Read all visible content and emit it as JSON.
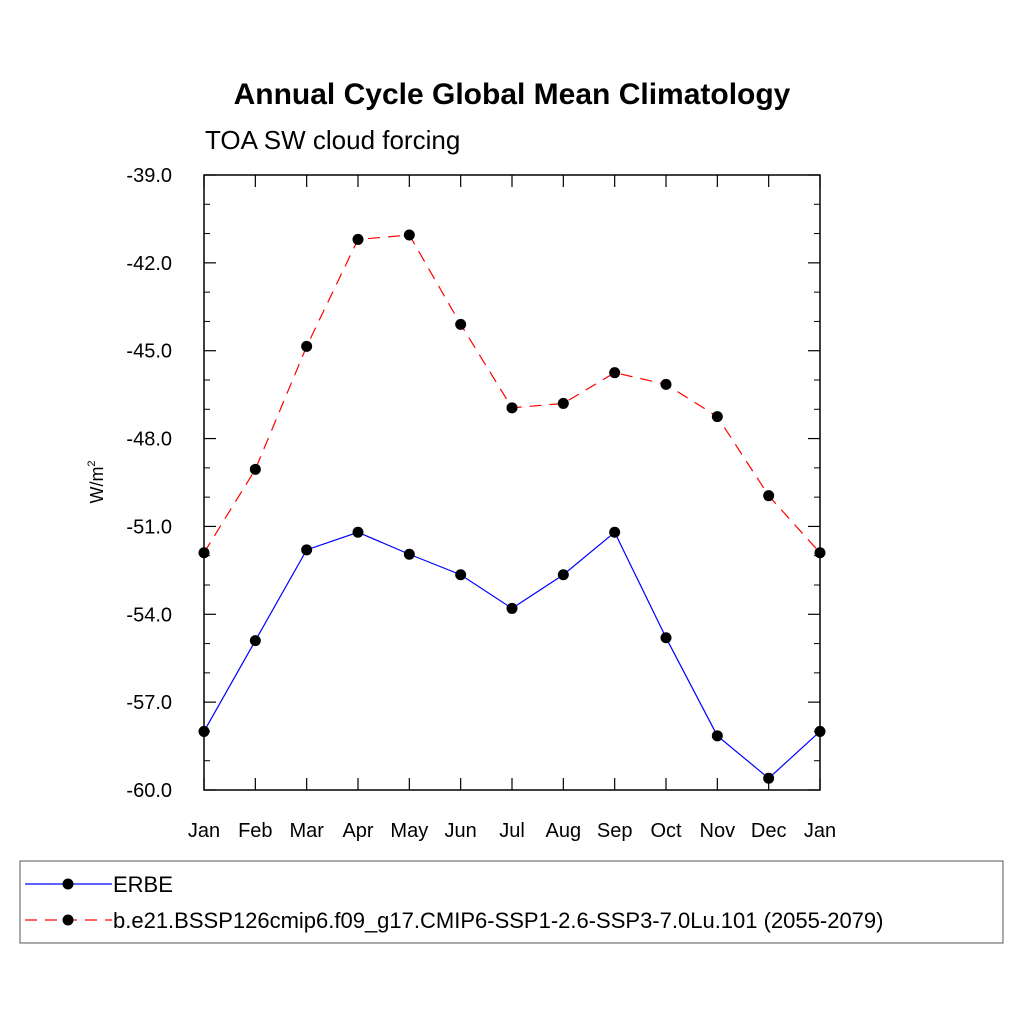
{
  "chart_data": {
    "type": "line",
    "title": "Annual Cycle Global Mean Climatology",
    "subtitle": "TOA SW cloud forcing",
    "ylabel": "W/m",
    "ylabel_sup": "2",
    "xlabel": "",
    "categories": [
      "Jan",
      "Feb",
      "Mar",
      "Apr",
      "May",
      "Jun",
      "Jul",
      "Aug",
      "Sep",
      "Oct",
      "Nov",
      "Dec",
      "Jan"
    ],
    "ylim": [
      -60.0,
      -39.0
    ],
    "yticks": [
      -60.0,
      -57.0,
      -54.0,
      -51.0,
      -48.0,
      -45.0,
      -42.0,
      -39.0
    ],
    "ytick_labels": [
      "-60.0",
      "-57.0",
      "-54.0",
      "-51.0",
      "-48.0",
      "-45.0",
      "-42.0",
      "-39.0"
    ],
    "grid": false,
    "legend_position": "bottom",
    "series": [
      {
        "name": "ERBE",
        "color": "#0000ff",
        "style": "solid",
        "marker": "filled-circle",
        "values": [
          -58.0,
          -54.9,
          -51.8,
          -51.2,
          -51.95,
          -52.65,
          -53.8,
          -52.65,
          -51.2,
          -54.8,
          -58.15,
          -59.6,
          -58.0
        ]
      },
      {
        "name": "b.e21.BSSP126cmip6.f09_g17.CMIP6-SSP1-2.6-SSP3-7.0Lu.101 (2055-2079)",
        "color": "#ff0000",
        "style": "dashed",
        "marker": "filled-circle",
        "values": [
          -51.9,
          -49.05,
          -44.85,
          -41.2,
          -41.05,
          -44.1,
          -46.95,
          -46.8,
          -45.75,
          -46.15,
          -47.25,
          -49.95,
          -51.9
        ]
      }
    ]
  }
}
